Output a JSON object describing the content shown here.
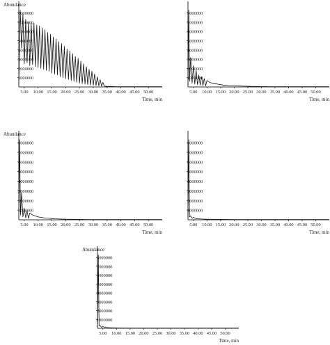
{
  "chart_data": [
    {
      "type": "line",
      "title": "",
      "ylabel": "Abundance",
      "xlabel": "Time, min",
      "xlim": [
        3,
        55
      ],
      "ylim": [
        0,
        8800000
      ],
      "xticks": [
        "5.00",
        "10.00",
        "15.00",
        "20.00",
        "25.00",
        "30.00",
        "35.00",
        "40.00",
        "45.00",
        "50.00"
      ],
      "yticks": [
        "1000000",
        "2000000",
        "3000000",
        "4000000",
        "5000000",
        "6000000",
        "7000000",
        "8000000"
      ],
      "series": [
        {
          "x": [
            3,
            3.5,
            4,
            4.5,
            5,
            5.5,
            6,
            6.5,
            7,
            7.5,
            8,
            8.5,
            9,
            9.5,
            10,
            10.5,
            11,
            11.5,
            12,
            12.5,
            13,
            13.5,
            14,
            14.5,
            15,
            15.5,
            16,
            16.5,
            17,
            17.5,
            18,
            18.5,
            19,
            19.5,
            20,
            20.5,
            21,
            21.5,
            22,
            22.5,
            23,
            23.5,
            24,
            24.5,
            25,
            25.5,
            26,
            26.5,
            27,
            27.5,
            28,
            28.5,
            29,
            29.5,
            30,
            30.5,
            31,
            31.5,
            32,
            32.5,
            33,
            33.5,
            34,
            35,
            36,
            38,
            40,
            45,
            50,
            55
          ],
          "y": [
            300000,
            8300000,
            4200000,
            7900000,
            2500000,
            7300000,
            2600000,
            7000000,
            2300000,
            6900000,
            2400000,
            6900000,
            2200000,
            6700000,
            2100000,
            6600000,
            2000000,
            6400000,
            1900000,
            6200000,
            1800000,
            5900000,
            1700000,
            5700000,
            1500000,
            5400000,
            1400000,
            5200000,
            1300000,
            4900000,
            1100000,
            4700000,
            1000000,
            4400000,
            900000,
            4100000,
            800000,
            3900000,
            700000,
            3600000,
            600000,
            3300000,
            500000,
            3100000,
            400000,
            2800000,
            350000,
            2500000,
            300000,
            2200000,
            250000,
            1900000,
            200000,
            1700000,
            180000,
            1400000,
            150000,
            1100000,
            120000,
            800000,
            100000,
            500000,
            80000,
            60000,
            50000,
            30000,
            20000,
            20000,
            20000,
            20000
          ]
        }
      ]
    },
    {
      "type": "line",
      "title": "",
      "ylabel": "",
      "xlabel": "Time, min",
      "xlim": [
        3,
        55
      ],
      "ylim": [
        0,
        8800000
      ],
      "xticks": [
        "5.00",
        "10.00",
        "15.00",
        "20.00",
        "25.00",
        "30.00",
        "35.00",
        "40.00",
        "45.00",
        "50.00"
      ],
      "yticks": [
        "1000000",
        "2000000",
        "3000000",
        "4000000",
        "5000000",
        "6000000",
        "7000000",
        "8000000"
      ],
      "series": [
        {
          "x": [
            3,
            3.3,
            3.6,
            4,
            4.5,
            5,
            5.5,
            6,
            6.5,
            7,
            7.5,
            8,
            8.5,
            9,
            9.5,
            10,
            11,
            12,
            13,
            14,
            15,
            16,
            17,
            18,
            20,
            22,
            24,
            26,
            28,
            30,
            33,
            36,
            40,
            45,
            50,
            55
          ],
          "y": [
            200000,
            8300000,
            600000,
            3200000,
            400000,
            2300000,
            300000,
            1800000,
            250000,
            1300000,
            200000,
            1100000,
            150000,
            900000,
            120000,
            700000,
            500000,
            400000,
            350000,
            300000,
            250000,
            200000,
            180000,
            150000,
            120000,
            100000,
            80000,
            60000,
            50000,
            40000,
            30000,
            20000,
            20000,
            20000,
            20000,
            20000
          ]
        }
      ]
    },
    {
      "type": "line",
      "title": "",
      "ylabel": "Abundance",
      "xlabel": "Time, min",
      "xlim": [
        3,
        55
      ],
      "ylim": [
        0,
        8800000
      ],
      "xticks": [
        "5.00",
        "10.00",
        "15.00",
        "20.00",
        "25.00",
        "30.00",
        "35.00",
        "40.00",
        "45.00",
        "50.00"
      ],
      "yticks": [
        "1000000",
        "2000000",
        "3000000",
        "4000000",
        "5000000",
        "6000000",
        "7000000",
        "8000000"
      ],
      "series": [
        {
          "x": [
            3,
            3.3,
            3.6,
            4,
            4.5,
            5,
            5.5,
            6,
            6.5,
            7,
            8,
            9,
            10,
            11,
            12,
            13,
            14,
            15,
            16,
            18,
            20,
            22,
            25,
            28,
            30,
            35,
            40,
            45,
            50,
            55
          ],
          "y": [
            200000,
            8300000,
            500000,
            2800000,
            300000,
            1200000,
            200000,
            900000,
            150000,
            700000,
            500000,
            400000,
            300000,
            250000,
            200000,
            180000,
            150000,
            120000,
            100000,
            80000,
            60000,
            50000,
            40000,
            30000,
            20000,
            20000,
            20000,
            20000,
            20000,
            20000
          ]
        }
      ]
    },
    {
      "type": "line",
      "title": "",
      "ylabel": "",
      "xlabel": "Time, min",
      "xlim": [
        3,
        55
      ],
      "ylim": [
        0,
        8800000
      ],
      "xticks": [
        "5.00",
        "10.00",
        "15.00",
        "20.00",
        "25.00",
        "30.00",
        "35.00",
        "40.00",
        "45.00",
        "50.00"
      ],
      "yticks": [
        "1000000",
        "2000000",
        "3000000",
        "4000000",
        "5000000",
        "6000000",
        "7000000",
        "8000000"
      ],
      "series": [
        {
          "x": [
            3,
            3.3,
            3.6,
            4,
            4.5,
            5,
            6,
            7,
            8,
            10,
            12,
            15,
            20,
            25,
            30,
            35,
            40,
            45,
            50,
            55
          ],
          "y": [
            200000,
            8300000,
            300000,
            400000,
            150000,
            250000,
            120000,
            100000,
            80000,
            60000,
            50000,
            40000,
            30000,
            25000,
            20000,
            20000,
            20000,
            20000,
            20000,
            20000
          ]
        }
      ]
    },
    {
      "type": "line",
      "title": "",
      "ylabel": "Abundance",
      "xlabel": "Time, min",
      "xlim": [
        3,
        55
      ],
      "ylim": [
        0,
        8800000
      ],
      "xticks": [
        "5.00",
        "10.00",
        "15.00",
        "20.00",
        "25.00",
        "30.00",
        "35.00",
        "40.00",
        "45.00",
        "50.00"
      ],
      "yticks": [
        "1000000",
        "2000000",
        "3000000",
        "4000000",
        "5000000",
        "6000000",
        "7000000",
        "8000000"
      ],
      "series": [
        {
          "x": [
            3,
            3.3,
            3.6,
            4,
            4.5,
            5,
            6,
            7,
            8,
            10,
            12,
            15,
            20,
            25,
            30,
            35,
            40,
            45,
            50,
            55
          ],
          "y": [
            150000,
            8300000,
            250000,
            300000,
            120000,
            200000,
            100000,
            80000,
            60000,
            50000,
            40000,
            30000,
            25000,
            20000,
            20000,
            20000,
            20000,
            20000,
            20000,
            20000
          ]
        }
      ]
    }
  ]
}
